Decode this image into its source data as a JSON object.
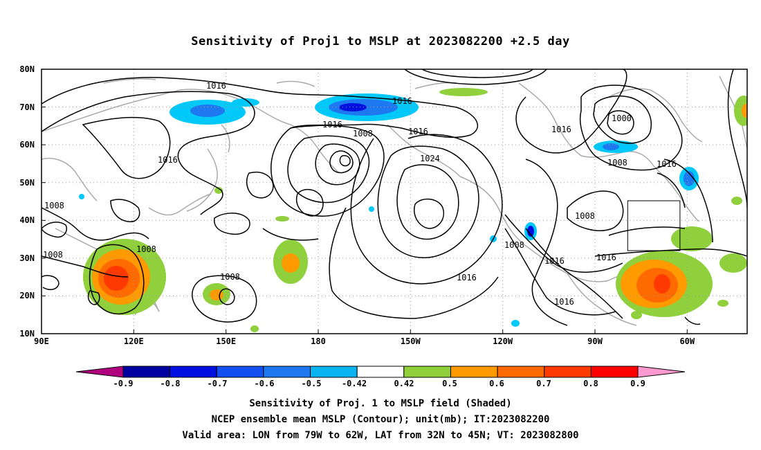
{
  "title": "Sensitivity of Proj1 to MSLP at 2023082200 +2.5 day",
  "map": {
    "lat_labels": [
      "80N",
      "70N",
      "60N",
      "50N",
      "40N",
      "30N",
      "20N",
      "10N"
    ],
    "lon_labels": [
      "90E",
      "120E",
      "150E",
      "180",
      "150W",
      "120W",
      "90W",
      "60W"
    ],
    "contour_labels": [
      "1016",
      "1016",
      "1016",
      "1016",
      "1016",
      "1016",
      "1016",
      "1016",
      "1016",
      "1016",
      "1008",
      "1008",
      "1008",
      "1008",
      "1008",
      "1008",
      "1008",
      "1008",
      "1024",
      "1000"
    ],
    "valid_box": {
      "lon_from": "79W",
      "lon_to": "62W",
      "lat_from": "32N",
      "lat_to": "45N"
    }
  },
  "colorbar": {
    "labels": [
      "-0.9",
      "-0.8",
      "-0.7",
      "-0.6",
      "-0.5",
      "-0.42",
      "0.42",
      "0.5",
      "0.6",
      "0.7",
      "0.8",
      "0.9"
    ],
    "colors": [
      "#b0007e",
      "#0000a0",
      "#0010e0",
      "#1450f0",
      "#1e78f0",
      "#0ab4f0",
      "#00c8f8",
      "#ffffff",
      "#8fd03c",
      "#ff9a00",
      "#ff6a00",
      "#ff3a00",
      "#ff0000",
      "#ff9ad0"
    ]
  },
  "captions": {
    "line1": "Sensitivity of Proj. 1 to MSLP field (Shaded)",
    "line2": "NCEP ensemble mean MSLP (Contour); unit(mb); IT:2023082200",
    "line3": "Valid area: LON from 79W to 62W, LAT from 32N to 45N; VT: 2023082800"
  }
}
